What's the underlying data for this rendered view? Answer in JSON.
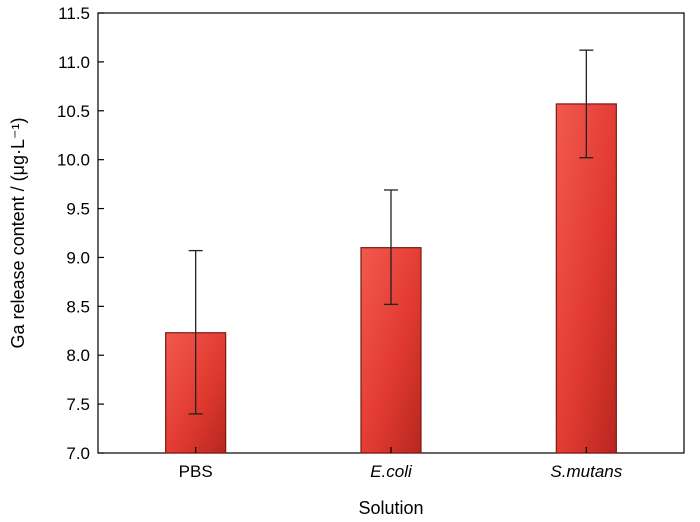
{
  "chart_data": {
    "type": "bar",
    "categories": [
      "PBS",
      "E.coli",
      "S.mutans"
    ],
    "category_italic": [
      false,
      true,
      true
    ],
    "values": [
      8.23,
      9.1,
      10.57
    ],
    "error_upper": [
      9.07,
      9.69,
      11.12
    ],
    "error_lower": [
      7.4,
      8.52,
      10.02
    ],
    "xlabel": "Solution",
    "ylabel": "Ga release content / (μg·L⁻¹)",
    "ylim": [
      7.0,
      11.5
    ],
    "yticks": [
      "7.0",
      "7.5",
      "8.0",
      "8.5",
      "9.0",
      "9.5",
      "10.0",
      "10.5",
      "11.0",
      "11.5"
    ],
    "grid": false,
    "bar_color": "#e8453c",
    "bar_edge_color": "#7a1a14"
  }
}
